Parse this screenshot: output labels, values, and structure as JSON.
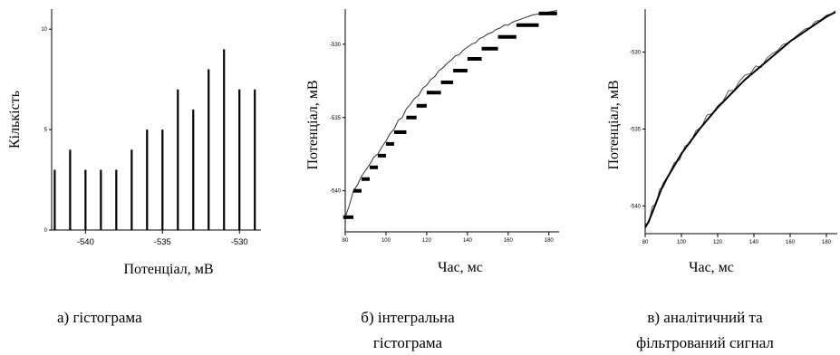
{
  "chart_data": [
    {
      "type": "bar",
      "caption": "а) гістограма",
      "xlabel": "Потенціал, мВ",
      "ylabel": "Кількість",
      "x": [
        -542,
        -541,
        -540,
        -539,
        -538,
        -537,
        -536,
        -535,
        -534,
        -533,
        -532,
        -531,
        -530,
        -529
      ],
      "values": [
        3,
        4,
        3,
        3,
        3,
        4,
        5,
        5,
        7,
        6,
        8,
        9,
        7,
        7
      ],
      "xlim": [
        -542.2,
        -528.6
      ],
      "ylim": [
        0,
        11
      ],
      "xticks": [
        -540,
        -535,
        -530
      ],
      "yticks": [
        0,
        5,
        10
      ],
      "grid": false
    },
    {
      "type": "line",
      "caption": "б) інтегральна гістограма",
      "xlabel": "Час, мс",
      "ylabel": "Потенціал, мВ",
      "xlim": [
        80,
        185
      ],
      "ylim": [
        -542.8,
        -527.6
      ],
      "xticks": [
        80,
        100,
        120,
        140,
        160,
        180
      ],
      "yticks": [
        -540,
        -535,
        -530
      ],
      "grid": false,
      "series": [
        {
          "kind": "raw",
          "x": [
            80,
            82,
            84,
            86,
            88,
            90,
            92,
            94,
            96,
            98,
            100,
            102,
            104,
            106,
            108,
            110,
            112,
            114,
            116,
            118,
            120,
            122,
            124,
            126,
            128,
            130,
            132,
            134,
            136,
            138,
            140,
            142,
            144,
            146,
            148,
            150,
            152,
            154,
            156,
            158,
            160,
            162,
            164,
            166,
            168,
            170,
            172,
            174,
            176,
            178,
            180,
            182,
            184
          ],
          "y": [
            -541.8,
            -541.0,
            -540.0,
            -539.6,
            -539.0,
            -538.6,
            -538.2,
            -537.7,
            -537.5,
            -537.0,
            -536.6,
            -536.1,
            -535.8,
            -535.2,
            -535.0,
            -534.4,
            -534.1,
            -533.7,
            -533.5,
            -533.0,
            -532.8,
            -532.4,
            -532.2,
            -531.8,
            -531.6,
            -531.3,
            -531.1,
            -530.8,
            -530.7,
            -530.4,
            -530.2,
            -530.0,
            -529.9,
            -529.6,
            -529.5,
            -529.3,
            -529.2,
            -529.0,
            -528.9,
            -528.7,
            -528.7,
            -528.5,
            -528.4,
            -528.3,
            -528.2,
            -528.1,
            -528.0,
            -527.95,
            -527.9,
            -527.85,
            -527.8,
            -527.75,
            -527.7
          ]
        },
        {
          "kind": "steps",
          "x0": [
            79,
            84,
            88,
            92,
            96,
            100,
            104,
            110,
            115,
            120,
            127,
            133,
            140,
            147,
            155,
            164,
            175
          ],
          "x1": [
            84,
            88,
            92,
            96,
            100,
            104,
            110,
            115,
            120,
            127,
            133,
            140,
            147,
            155,
            164,
            175,
            184
          ],
          "y": [
            -541.8,
            -540.0,
            -539.2,
            -538.4,
            -537.6,
            -536.8,
            -536.0,
            -535.0,
            -534.2,
            -533.3,
            -532.6,
            -531.8,
            -531.0,
            -530.3,
            -529.5,
            -528.7,
            -527.9
          ]
        }
      ]
    },
    {
      "type": "line",
      "caption": "в) аналітичний та фільтрований сигнал",
      "xlabel": "Час, мс",
      "ylabel": "Потенціал, мВ",
      "xlim": [
        80,
        186
      ],
      "ylim": [
        -541.8,
        -527.2
      ],
      "xticks": [
        80,
        100,
        120,
        140,
        160,
        180
      ],
      "yticks": [
        -540,
        -535,
        -530
      ],
      "grid": false,
      "series": [
        {
          "kind": "analytic",
          "x": [
            80,
            82,
            84,
            86,
            88,
            90,
            95,
            100,
            105,
            110,
            115,
            120,
            125,
            130,
            135,
            140,
            145,
            150,
            155,
            160,
            165,
            170,
            175,
            180,
            185
          ],
          "y": [
            -541.4,
            -541.0,
            -540.4,
            -539.8,
            -539.2,
            -538.6,
            -537.6,
            -536.6,
            -535.8,
            -535.0,
            -534.3,
            -533.6,
            -533.0,
            -532.4,
            -531.8,
            -531.3,
            -530.8,
            -530.3,
            -529.8,
            -529.3,
            -528.9,
            -528.5,
            -528.1,
            -527.7,
            -527.4
          ]
        },
        {
          "kind": "filtered",
          "x": [
            80,
            82,
            84,
            86,
            88,
            90,
            93,
            96,
            99,
            102,
            105,
            108,
            111,
            114,
            117,
            120,
            123,
            126,
            129,
            132,
            135,
            138,
            141,
            144,
            147,
            150,
            153,
            156,
            159,
            162,
            165,
            168,
            171,
            174,
            177,
            180,
            183,
            185
          ],
          "y": [
            -541.2,
            -541.1,
            -540.0,
            -539.9,
            -538.9,
            -538.8,
            -538.0,
            -537.2,
            -537.0,
            -536.1,
            -535.9,
            -535.1,
            -534.9,
            -534.1,
            -534.0,
            -533.5,
            -533.2,
            -532.5,
            -532.5,
            -531.9,
            -531.5,
            -531.4,
            -530.9,
            -531.0,
            -530.4,
            -530.1,
            -529.9,
            -529.5,
            -529.4,
            -529.1,
            -528.8,
            -528.5,
            -528.4,
            -528.0,
            -527.9,
            -527.6,
            -527.5,
            -527.3
          ]
        }
      ]
    }
  ]
}
